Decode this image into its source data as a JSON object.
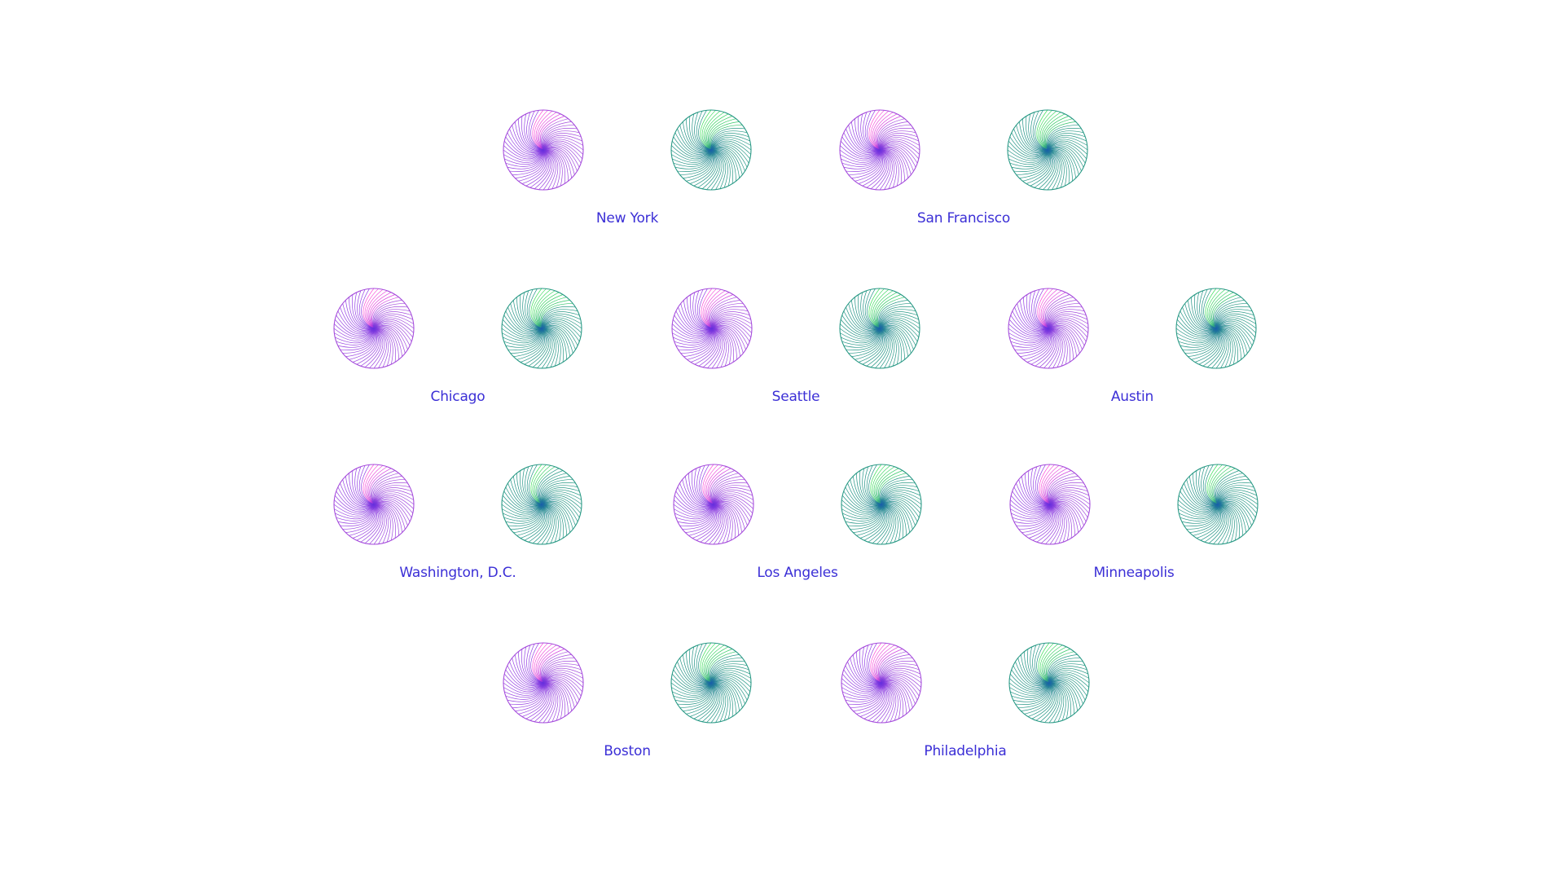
{
  "chart_data": {
    "type": "radial-glyph",
    "colors": {
      "label": "#3b2fd6",
      "purple_light": "#ff4fd8",
      "purple_dark": "#7b2ff0",
      "purple_stroke": "#a64ddc",
      "purple_center": "#3a1ed8",
      "green_light": "#3ee05a",
      "green_dark": "#1a8a86",
      "green_stroke": "#2a9a86",
      "green_center": "#1030c8"
    },
    "cities": [
      {
        "name": "New York",
        "glyphs": [
          {
            "palette": "purple",
            "highlight": 0.1
          },
          {
            "palette": "green",
            "highlight": 0.15
          }
        ]
      },
      {
        "name": "San Francisco",
        "glyphs": [
          {
            "palette": "purple",
            "highlight": 0.09
          },
          {
            "palette": "green",
            "highlight": 0.13
          }
        ]
      },
      {
        "name": "Chicago",
        "glyphs": [
          {
            "palette": "purple",
            "highlight": 0.12
          },
          {
            "palette": "green",
            "highlight": 0.15
          }
        ]
      },
      {
        "name": "Seattle",
        "glyphs": [
          {
            "palette": "purple",
            "highlight": 0.09
          },
          {
            "palette": "green",
            "highlight": 0.12
          }
        ]
      },
      {
        "name": "Austin",
        "glyphs": [
          {
            "palette": "purple",
            "highlight": 0.08
          },
          {
            "palette": "green",
            "highlight": 0.09
          }
        ]
      },
      {
        "name": "Washington, D.C.",
        "glyphs": [
          {
            "palette": "purple",
            "highlight": 0.08
          },
          {
            "palette": "green",
            "highlight": 0.07
          }
        ]
      },
      {
        "name": "Los Angeles",
        "glyphs": [
          {
            "palette": "purple",
            "highlight": 0.08
          },
          {
            "palette": "green",
            "highlight": 0.12
          }
        ]
      },
      {
        "name": "Minneapolis",
        "glyphs": [
          {
            "palette": "purple",
            "highlight": 0.09
          },
          {
            "palette": "green",
            "highlight": 0.08
          }
        ]
      },
      {
        "name": "Boston",
        "glyphs": [
          {
            "palette": "purple",
            "highlight": 0.1
          },
          {
            "palette": "green",
            "highlight": 0.12
          }
        ]
      },
      {
        "name": "Philadelphia",
        "glyphs": [
          {
            "palette": "purple",
            "highlight": 0.09
          },
          {
            "palette": "green",
            "highlight": 0.11
          }
        ]
      }
    ]
  }
}
